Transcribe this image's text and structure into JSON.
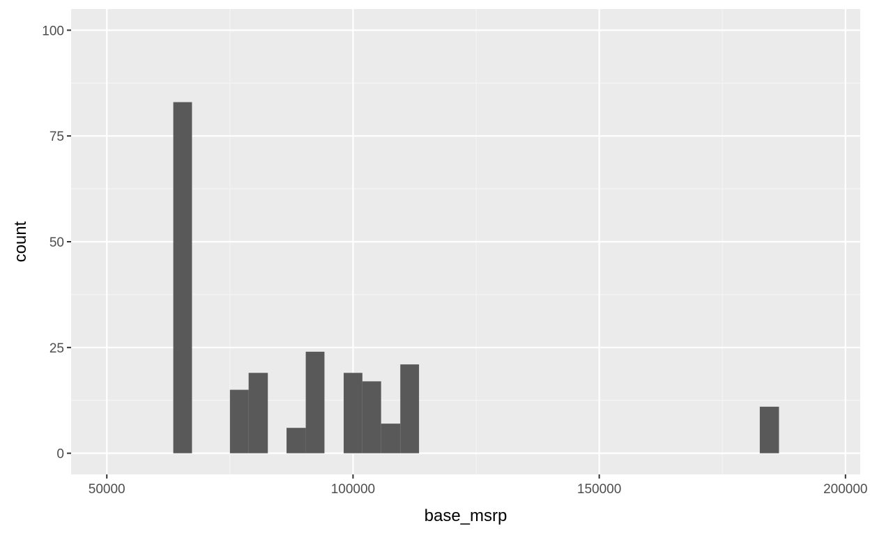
{
  "chart_data": {
    "type": "bar",
    "subtype": "histogram",
    "title": "",
    "xlabel": "base_msrp",
    "ylabel": "count",
    "xlim": [
      42750,
      203000
    ],
    "ylim": [
      -5,
      105
    ],
    "x_ticks": [
      50000,
      100000,
      150000,
      200000
    ],
    "x_tick_labels": [
      "50000",
      "100000",
      "150000",
      "200000"
    ],
    "x_minor_ticks": [
      75000,
      125000,
      175000
    ],
    "y_ticks": [
      0,
      25,
      50,
      75,
      100
    ],
    "y_tick_labels": [
      "0",
      "25",
      "50",
      "75",
      "100"
    ],
    "y_minor_ticks": [
      12.5,
      37.5,
      62.5,
      87.5
    ],
    "grid": true,
    "bins": [
      {
        "x0": 63500,
        "x1": 67300,
        "count": 83
      },
      {
        "x0": 75000,
        "x1": 78800,
        "count": 15
      },
      {
        "x0": 78800,
        "x1": 82700,
        "count": 19
      },
      {
        "x0": 86500,
        "x1": 90400,
        "count": 6
      },
      {
        "x0": 90400,
        "x1": 94200,
        "count": 24
      },
      {
        "x0": 98100,
        "x1": 101900,
        "count": 19
      },
      {
        "x0": 101900,
        "x1": 105700,
        "count": 17
      },
      {
        "x0": 105700,
        "x1": 109600,
        "count": 7
      },
      {
        "x0": 109600,
        "x1": 113400,
        "count": 21
      },
      {
        "x0": 182600,
        "x1": 186500,
        "count": 11
      }
    ],
    "colors": {
      "panel_background": "#ebebeb",
      "grid_major": "#ffffff",
      "grid_minor": "#f5f5f5",
      "bar_fill": "#595959",
      "tick_color": "#333333",
      "tick_label_color": "#4d4d4d"
    }
  }
}
